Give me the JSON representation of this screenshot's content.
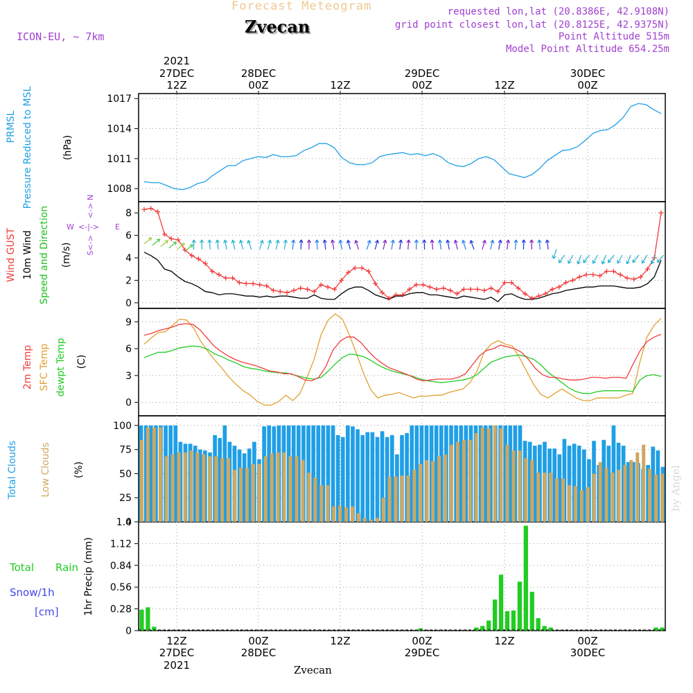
{
  "header": {
    "product": "Forecast Meteogram",
    "location": "Zvecan",
    "model": "ICON-EU, ~ 7km",
    "requested": "requested lon,lat (20.8386E, 42.9108N)",
    "grid_point": "grid point closest lon,lat (20.8125E, 42.9375N)",
    "point_altitude": "Point Altitude 515m",
    "model_altitude": "Model Point Altitude 654.25m",
    "footer_location": "Zvecan",
    "watermark": "by Angel"
  },
  "colors": {
    "pressure": "#1f9fe6",
    "gust": "#f03c3c",
    "wind10m": "#000000",
    "speed_dir": "#1fbf1f",
    "t2m": "#f03c3c",
    "sfc": "#e0a030",
    "dewpt": "#22cc22",
    "total_clouds": "#1f9fe6",
    "low_clouds": "#cfa860",
    "rain": "#22cc22",
    "snow": "#4444ee",
    "compass": "#a040d0"
  },
  "time_axis": {
    "top_ticks": [
      {
        "label": "12Z",
        "day": "27DEC",
        "year": "2021"
      },
      {
        "label": "00Z",
        "day": "28DEC"
      },
      {
        "label": "12Z"
      },
      {
        "label": "00Z",
        "day": "29DEC"
      },
      {
        "label": "12Z"
      },
      {
        "label": "00Z",
        "day": "30DEC"
      }
    ]
  },
  "chart_data": [
    {
      "type": "line",
      "panel": "pressure",
      "ylabel_lines": [
        "PRMSL",
        "Pressure Reduced to MSL"
      ],
      "unit": "(hPa)",
      "yticks": [
        1008,
        1011,
        1014,
        1017
      ],
      "ylim": [
        1006.7,
        1017.5
      ],
      "series": [
        {
          "name": "PRMSL",
          "values": [
            1008.7,
            1008.6,
            1008.6,
            1008.3,
            1008.0,
            1007.9,
            1008.1,
            1008.5,
            1008.7,
            1009.3,
            1009.8,
            1010.3,
            1010.3,
            1010.8,
            1011.0,
            1011.2,
            1011.1,
            1011.4,
            1011.2,
            1011.2,
            1011.3,
            1011.8,
            1012.1,
            1012.5,
            1012.5,
            1012.1,
            1011.1,
            1010.6,
            1010.4,
            1010.4,
            1010.6,
            1011.2,
            1011.4,
            1011.5,
            1011.6,
            1011.4,
            1011.5,
            1011.3,
            1011.5,
            1011.2,
            1010.6,
            1010.3,
            1010.2,
            1010.5,
            1011.0,
            1011.2,
            1010.9,
            1010.2,
            1009.5,
            1009.3,
            1009.1,
            1009.4,
            1010.0,
            1010.8,
            1011.3,
            1011.8,
            1011.9,
            1012.2,
            1012.8,
            1013.5,
            1013.8,
            1013.9,
            1014.4,
            1015.1,
            1016.2,
            1016.5,
            1016.4,
            1015.9,
            1015.5
          ]
        }
      ]
    },
    {
      "type": "line",
      "panel": "wind",
      "ylabel_lines": [
        "Wind GUST",
        "10m Wind",
        "Speed and Direction"
      ],
      "unit": "(m/s)",
      "compass": {
        "n": "N",
        "e": "E",
        "s": "S",
        "w": "W"
      },
      "yticks": [
        0,
        2,
        4,
        6,
        8
      ],
      "ylim": [
        -0.5,
        9
      ],
      "series": [
        {
          "name": "Wind GUST",
          "values": [
            8.3,
            8.4,
            8.1,
            6.1,
            5.7,
            5.6,
            4.7,
            4.2,
            3.9,
            3.5,
            2.8,
            2.5,
            2.2,
            2.2,
            1.8,
            1.7,
            1.7,
            1.6,
            1.5,
            1.1,
            1.0,
            0.9,
            1.1,
            1.3,
            1.2,
            1.0,
            1.6,
            1.4,
            1.2,
            2.0,
            2.7,
            3.1,
            3.1,
            2.8,
            1.7,
            0.9,
            0.4,
            0.7,
            0.7,
            1.2,
            1.6,
            1.6,
            1.4,
            1.2,
            1.3,
            1.1,
            0.8,
            1.2,
            1.2,
            1.2,
            1.1,
            1.3,
            1.0,
            1.8,
            1.8,
            1.3,
            0.8,
            0.4,
            0.6,
            0.8,
            1.2,
            1.4,
            1.8,
            2.0,
            2.3,
            2.5,
            2.5,
            2.4,
            2.8,
            2.8,
            2.5,
            2.2,
            2.1,
            2.3,
            3.0,
            4.0,
            8.0
          ]
        },
        {
          "name": "10m Wind",
          "values": [
            4.5,
            4.2,
            3.8,
            3.0,
            2.8,
            2.3,
            1.9,
            1.7,
            1.4,
            1.0,
            0.9,
            0.7,
            0.8,
            0.8,
            0.7,
            0.6,
            0.6,
            0.5,
            0.6,
            0.5,
            0.6,
            0.6,
            0.5,
            0.4,
            0.4,
            0.7,
            0.4,
            0.3,
            0.3,
            0.8,
            1.2,
            1.4,
            1.4,
            1.1,
            0.7,
            0.5,
            0.3,
            0.6,
            0.6,
            0.8,
            0.9,
            0.9,
            0.7,
            0.7,
            0.6,
            0.5,
            0.4,
            0.6,
            0.5,
            0.4,
            0.3,
            0.5,
            0.1,
            0.7,
            0.8,
            0.5,
            0.3,
            0.3,
            0.4,
            0.6,
            0.8,
            0.9,
            1.1,
            1.2,
            1.3,
            1.4,
            1.4,
            1.5,
            1.5,
            1.5,
            1.4,
            1.3,
            1.3,
            1.4,
            1.7,
            2.3,
            3.8
          ]
        }
      ]
    },
    {
      "type": "line",
      "panel": "temperature",
      "ylabel_lines": [
        "2m Temp",
        "SFC Temp",
        "dewpt Temp"
      ],
      "unit": "(C)",
      "yticks": [
        0,
        3,
        6,
        9
      ],
      "ylim": [
        -1.5,
        10.5
      ],
      "series": [
        {
          "name": "2m Temp",
          "values": [
            7.5,
            7.7,
            8.0,
            8.2,
            8.4,
            8.7,
            8.8,
            8.7,
            8.1,
            7.2,
            6.3,
            5.7,
            5.2,
            4.8,
            4.5,
            4.3,
            4.1,
            3.8,
            3.5,
            3.4,
            3.2,
            3.2,
            2.9,
            2.5,
            2.4,
            2.8,
            4.0,
            5.8,
            6.8,
            7.3,
            7.3,
            6.7,
            5.8,
            5.0,
            4.4,
            3.9,
            3.6,
            3.3,
            3.0,
            2.6,
            2.4,
            2.5,
            2.6,
            2.6,
            2.6,
            2.8,
            3.2,
            4.2,
            5.2,
            5.8,
            6.0,
            6.4,
            6.2,
            6.0,
            5.6,
            4.8,
            3.8,
            3.1,
            2.8,
            2.8,
            2.6,
            2.5,
            2.5,
            2.6,
            2.8,
            2.8,
            2.7,
            2.8,
            2.8,
            2.7,
            4.3,
            5.8,
            6.8,
            7.3,
            7.6
          ]
        },
        {
          "name": "SFC Temp",
          "values": [
            6.5,
            7.2,
            7.8,
            7.9,
            8.6,
            9.3,
            9.2,
            8.3,
            6.8,
            5.7,
            4.7,
            3.8,
            2.8,
            2.0,
            1.3,
            0.8,
            0.1,
            -0.3,
            -0.3,
            0.1,
            0.8,
            0.2,
            1.0,
            2.8,
            4.8,
            7.6,
            9.2,
            9.9,
            9.3,
            7.5,
            5.4,
            3.2,
            1.4,
            0.5,
            0.8,
            0.9,
            1.1,
            0.8,
            0.5,
            0.7,
            0.7,
            0.8,
            0.8,
            1.1,
            1.3,
            1.5,
            2.2,
            3.5,
            5.6,
            6.5,
            6.9,
            6.5,
            6.3,
            5.0,
            3.5,
            2.0,
            0.9,
            0.5,
            1.0,
            1.5,
            1.0,
            0.5,
            0.2,
            0.2,
            0.5,
            0.5,
            0.5,
            0.5,
            0.8,
            1.0,
            4.5,
            7.3,
            8.6,
            9.4
          ]
        },
        {
          "name": "dewpt Temp",
          "values": [
            5.0,
            5.3,
            5.6,
            5.6,
            5.8,
            6.1,
            6.2,
            6.3,
            6.2,
            5.9,
            5.4,
            5.1,
            4.7,
            4.4,
            4.0,
            3.8,
            3.7,
            3.5,
            3.4,
            3.3,
            3.3,
            3.1,
            2.9,
            2.7,
            2.6,
            2.8,
            3.5,
            4.3,
            5.0,
            5.4,
            5.3,
            5.1,
            4.7,
            4.2,
            3.8,
            3.5,
            3.3,
            3.1,
            2.9,
            2.6,
            2.4,
            2.3,
            2.2,
            2.3,
            2.4,
            2.5,
            2.7,
            3.1,
            3.8,
            4.5,
            4.8,
            5.1,
            5.2,
            5.3,
            5.1,
            4.8,
            4.2,
            3.4,
            2.8,
            2.2,
            1.6,
            1.2,
            1.0,
            1.0,
            1.2,
            1.3,
            1.3,
            1.3,
            1.3,
            1.2,
            2.5,
            3.0,
            3.1,
            2.9
          ]
        }
      ]
    },
    {
      "type": "bar",
      "panel": "clouds",
      "ylabel_lines": [
        "Total Clouds",
        "Low Clouds"
      ],
      "unit": "(%)",
      "yticks": [
        0,
        25,
        50,
        75,
        100
      ],
      "ylim": [
        0,
        110
      ],
      "series": [
        {
          "name": "Total Clouds",
          "values": [
            100,
            100,
            100,
            100,
            100,
            100,
            100,
            100,
            83,
            81,
            81,
            79,
            75,
            74,
            72,
            90,
            87,
            100,
            83,
            79,
            75,
            71,
            76,
            83,
            65,
            99,
            100,
            99,
            100,
            100,
            100,
            100,
            100,
            100,
            100,
            100,
            100,
            100,
            100,
            100,
            90,
            88,
            100,
            99,
            96,
            90,
            93,
            93,
            88,
            94,
            88,
            90,
            70,
            90,
            92,
            100,
            100,
            100,
            100,
            100,
            100,
            100,
            100,
            100,
            100,
            100,
            100,
            100,
            100,
            100,
            100,
            100,
            100,
            100,
            100,
            100,
            100,
            100,
            84,
            83,
            79,
            80,
            83,
            76,
            76,
            70,
            86,
            79,
            81,
            79,
            75,
            65,
            84,
            59,
            85,
            79,
            100,
            82,
            79,
            62,
            62,
            61,
            55,
            59,
            78,
            74,
            57
          ]
        },
        {
          "name": "Low Clouds",
          "values": [
            85,
            98,
            98,
            98,
            68,
            70,
            72,
            72,
            74,
            72,
            70,
            68,
            68,
            66,
            66,
            54,
            56,
            56,
            60,
            60,
            68,
            71,
            72,
            72,
            68,
            68,
            64,
            51,
            46,
            38,
            38,
            16,
            17,
            15,
            16,
            9,
            4,
            2,
            4,
            25,
            47,
            47,
            48,
            48,
            54,
            60,
            64,
            63,
            68,
            70,
            80,
            83,
            85,
            85,
            92,
            98,
            97,
            100,
            97,
            80,
            74,
            74,
            66,
            64,
            51,
            51,
            51,
            45,
            45,
            38,
            37,
            33,
            36,
            50,
            62,
            56,
            51,
            54,
            59,
            64,
            72,
            80,
            55,
            49,
            50
          ]
        }
      ]
    },
    {
      "type": "bar",
      "panel": "precip",
      "ylabel": "1hr Precip (mm)",
      "label_total": "Total",
      "label_rain": "Rain",
      "label_snow": "Snow/1h",
      "label_snow_unit": "[cm]",
      "yticks": [
        0,
        0.28,
        0.56,
        0.84,
        1.12,
        1.4
      ],
      "ylim": [
        0,
        1.4
      ],
      "series": [
        {
          "name": "Total Rain",
          "values": [
            0.27,
            0.3,
            0.05,
            0,
            0,
            0,
            0,
            0,
            0,
            0,
            0,
            0,
            0,
            0,
            0,
            0,
            0,
            0,
            0,
            0,
            0,
            0,
            0,
            0,
            0,
            0,
            0,
            0,
            0,
            0,
            0,
            0,
            0,
            0,
            0,
            0,
            0,
            0,
            0,
            0,
            0,
            0,
            0,
            0,
            0,
            0.03,
            0,
            0,
            0,
            0,
            0,
            0,
            0,
            0,
            0.04,
            0.06,
            0.13,
            0.4,
            0.72,
            0.25,
            0.26,
            0.63,
            1.35,
            0.5,
            0.16,
            0.06,
            0.04,
            0,
            0,
            0,
            0,
            0,
            0,
            0,
            0,
            0,
            0,
            0,
            0,
            0,
            0,
            0,
            0,
            0.04,
            0.04
          ]
        }
      ]
    }
  ]
}
